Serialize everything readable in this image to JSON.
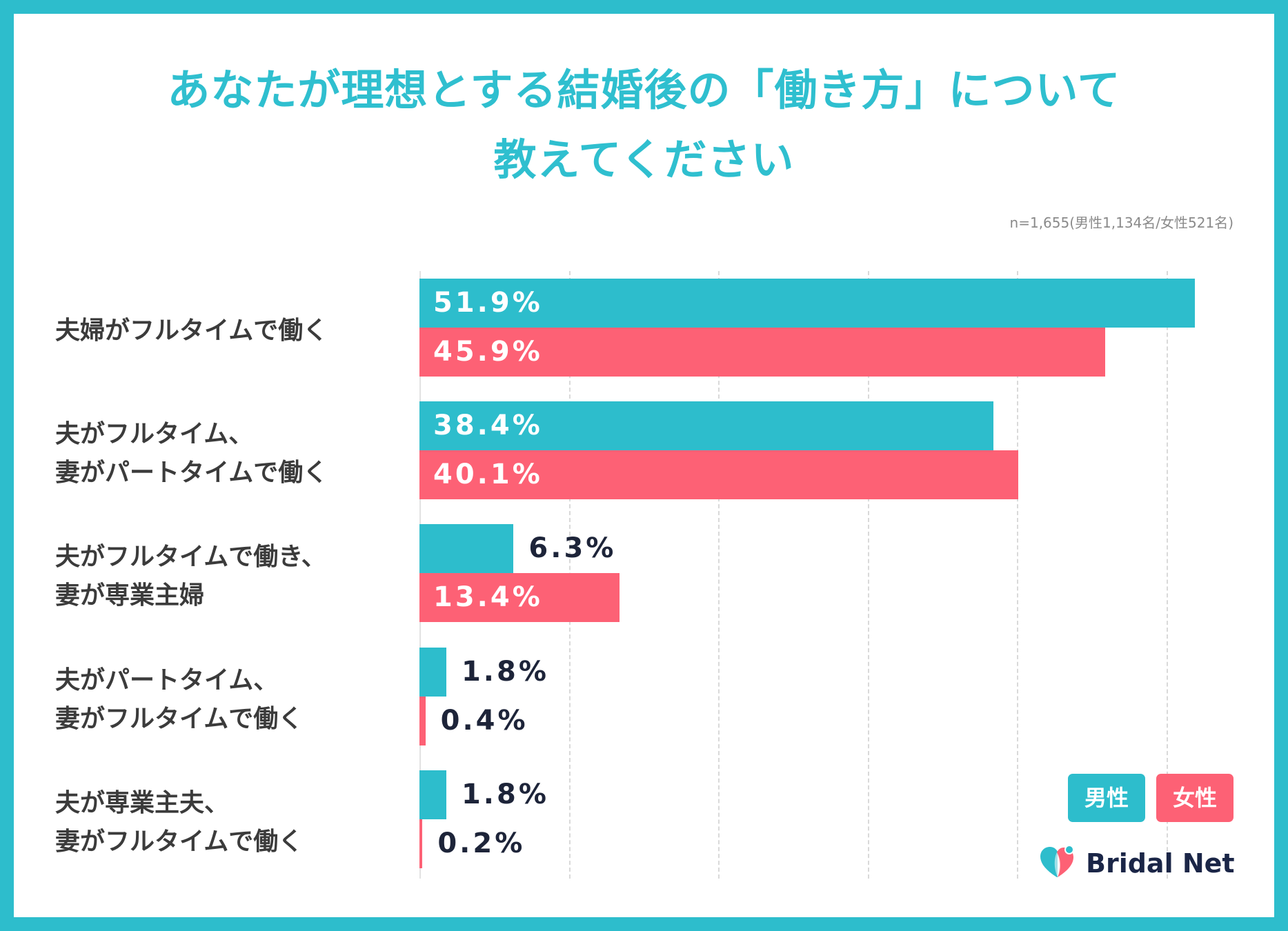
{
  "title": {
    "line1": "あなたが理想とする結婚後の「働き方」について",
    "line2": "教えてください"
  },
  "sample_note": "n=1,655(男性1,134名/女性521名)",
  "brand": {
    "name": "Bridal Net",
    "icon": "heart-logo-icon"
  },
  "colors": {
    "frame": "#2dbdcc",
    "title": "#2fbfcf",
    "label_outside": "#1d2439",
    "label_inside": "#ffffff"
  },
  "chart_data": {
    "type": "bar",
    "categories": [
      [
        "夫婦がフルタイムで働く"
      ],
      [
        "夫がフルタイム、",
        "妻がパートタイムで働く"
      ],
      [
        "夫がフルタイムで働き、",
        "妻が専業主婦"
      ],
      [
        "夫がパートタイム、",
        "妻がフルタイムで働く"
      ],
      [
        "夫が専業主夫、",
        "妻がフルタイムで働く"
      ]
    ],
    "series": [
      {
        "name": "男性",
        "color": "#2dbdcc",
        "values": [
          51.9,
          38.4,
          6.3,
          1.8,
          1.8
        ]
      },
      {
        "name": "女性",
        "color": "#fd6175",
        "values": [
          45.9,
          40.1,
          13.4,
          0.4,
          0.2
        ]
      }
    ],
    "unit": "%",
    "xlim": [
      0,
      55
    ],
    "x_gridlines": [
      0,
      10,
      20,
      30,
      40,
      50
    ],
    "grid": true
  }
}
